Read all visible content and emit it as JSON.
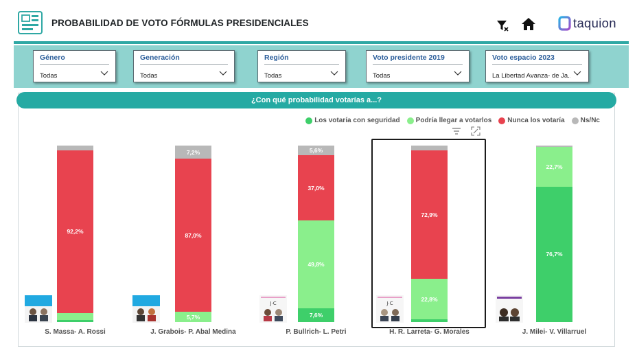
{
  "header": {
    "title": "PROBABILIDAD DE VOTO FÓRMULAS PRESIDENCIALES",
    "brand": "taquion",
    "icons": [
      "dashboard-icon",
      "filter-clear-icon",
      "home-icon",
      "taquion-logo"
    ]
  },
  "filters": [
    {
      "label": "Género",
      "value": "Todas"
    },
    {
      "label": "Generación",
      "value": "Todas"
    },
    {
      "label": "Región",
      "value": "Todas"
    },
    {
      "label": "Voto presidente 2019",
      "value": "Todas"
    },
    {
      "label": "Voto espacio 2023",
      "value": "La Libertad Avanza- de Ja..."
    }
  ],
  "chart_title": "¿Con qué probabilidad votarías a...?",
  "legend": [
    {
      "label": "Los votaría con seguridad",
      "color": "#3ecf6a"
    },
    {
      "label": "Podría llegar a votarlos",
      "color": "#8aef8c"
    },
    {
      "label": "Nunca los votaría",
      "color": "#e8434f"
    },
    {
      "label": "Ns/Nc",
      "color": "#b8b8b8"
    }
  ],
  "colors": {
    "accent": "#25aaa3",
    "seguridad": "#3ecf6a",
    "podria": "#8aef8c",
    "nunca": "#e8434f",
    "nsnc": "#b8b8b8"
  },
  "chart_data": {
    "type": "bar",
    "stacked": true,
    "orientation": "vertical",
    "categories": [
      "S. Massa- A. Rossi",
      "J. Grabois- P. Abal Medina",
      "P. Bullrich- L. Petri",
      "H. R. Larreta- G. Morales",
      "J. Milei- V. Villarruel"
    ],
    "series": [
      {
        "name": "Los votaría con seguridad",
        "values": [
          1.3,
          0.0,
          7.6,
          1.6,
          76.7
        ]
      },
      {
        "name": "Podría llegar a votarlos",
        "values": [
          3.9,
          5.7,
          49.8,
          22.8,
          22.7
        ]
      },
      {
        "name": "Nunca los votaría",
        "values": [
          92.2,
          87.0,
          37.0,
          72.9,
          0.0
        ]
      },
      {
        "name": "Ns/Nc",
        "values": [
          2.6,
          7.2,
          5.6,
          2.7,
          0.6
        ]
      }
    ],
    "data_labels": [
      [
        "",
        "",
        "92,2%",
        ""
      ],
      [
        "",
        "5,7%",
        "87,0%",
        "7,2%"
      ],
      [
        "7,6%",
        "49,8%",
        "37,0%",
        "5,6%"
      ],
      [
        "",
        "22,8%",
        "72,9%",
        ""
      ],
      [
        "76,7%",
        "22,7%",
        "",
        ""
      ]
    ],
    "ylim": [
      0,
      100
    ],
    "legend_position": "top-right",
    "grid": false,
    "selected_category": "H. R. Larreta- G. Morales"
  }
}
